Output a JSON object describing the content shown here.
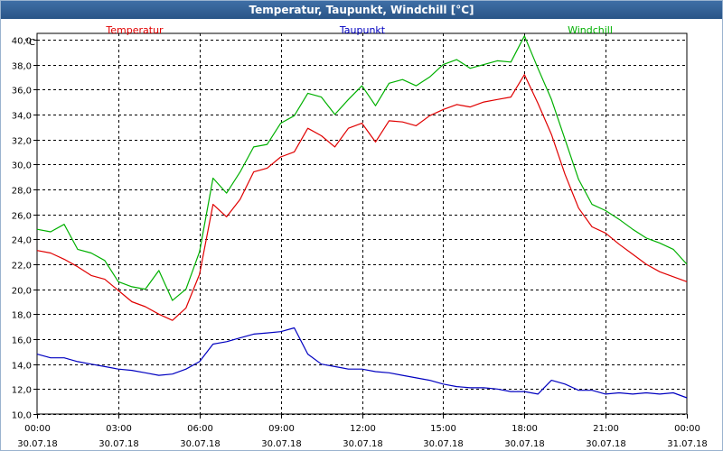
{
  "window": {
    "title": "Temperatur, Taupunkt, Windchill [°C]"
  },
  "chart_data": {
    "type": "line",
    "title": "Temperatur, Taupunkt, Windchill [°C]",
    "ylabel": "°C",
    "xlabel": "",
    "ylim": [
      10.0,
      40.5
    ],
    "xlim": [
      0,
      24
    ],
    "grid": true,
    "legend_placement": "top",
    "yticks": [
      "10,0",
      "12,0",
      "14,0",
      "16,0",
      "18,0",
      "20,0",
      "22,0",
      "24,0",
      "26,0",
      "28,0",
      "30,0",
      "32,0",
      "34,0",
      "36,0",
      "38,0",
      "40,0"
    ],
    "xticks": [
      {
        "time": "00:00",
        "date": "30.07.18"
      },
      {
        "time": "03:00",
        "date": "30.07.18"
      },
      {
        "time": "06:00",
        "date": "30.07.18"
      },
      {
        "time": "09:00",
        "date": "30.07.18"
      },
      {
        "time": "12:00",
        "date": "30.07.18"
      },
      {
        "time": "15:00",
        "date": "30.07.18"
      },
      {
        "time": "18:00",
        "date": "30.07.18"
      },
      {
        "time": "21:00",
        "date": "30.07.18"
      },
      {
        "time": "00:00",
        "date": "31.07.18"
      }
    ],
    "series": [
      {
        "name": "Temperatur",
        "color": "#e00000",
        "x": [
          0,
          0.5,
          1,
          1.5,
          2,
          2.5,
          3,
          3.5,
          4,
          4.5,
          5,
          5.5,
          6,
          6.5,
          7,
          7.5,
          8,
          8.5,
          9,
          9.5,
          10,
          10.5,
          11,
          11.5,
          12,
          12.5,
          13,
          13.5,
          14,
          14.5,
          15,
          15.5,
          16,
          16.5,
          17,
          17.5,
          18,
          18.5,
          19,
          19.5,
          20,
          20.5,
          21,
          21.5,
          22,
          22.5,
          23,
          23.5,
          24
        ],
        "values": [
          23.1,
          22.9,
          22.4,
          21.8,
          21.1,
          20.8,
          19.9,
          19.0,
          18.6,
          18.0,
          17.5,
          18.5,
          21.2,
          26.8,
          25.8,
          27.2,
          29.4,
          29.7,
          30.6,
          31.0,
          32.9,
          32.3,
          31.4,
          32.9,
          33.3,
          31.8,
          33.5,
          33.4,
          33.1,
          33.9,
          34.4,
          34.8,
          34.6,
          35.0,
          35.2,
          35.4,
          37.2,
          34.9,
          32.4,
          29.2,
          26.5,
          25.0,
          24.5,
          23.6,
          22.8,
          22.0,
          21.4,
          21.0,
          20.6
        ]
      },
      {
        "name": "Taupunkt",
        "color": "#0000c0",
        "x": [
          0,
          0.5,
          1,
          1.5,
          2,
          2.5,
          3,
          3.5,
          4,
          4.5,
          5,
          5.5,
          6,
          6.5,
          7,
          7.5,
          8,
          8.5,
          9,
          9.5,
          10,
          10.5,
          11,
          11.5,
          12,
          12.5,
          13,
          13.5,
          14,
          14.5,
          15,
          15.5,
          16,
          16.5,
          17,
          17.5,
          18,
          18.5,
          19,
          19.5,
          20,
          20.5,
          21,
          21.5,
          22,
          22.5,
          23,
          23.5,
          24
        ],
        "values": [
          14.8,
          14.5,
          14.5,
          14.2,
          14.0,
          13.8,
          13.6,
          13.5,
          13.3,
          13.1,
          13.2,
          13.6,
          14.2,
          15.6,
          15.8,
          16.1,
          16.4,
          16.5,
          16.6,
          16.9,
          14.8,
          14.0,
          13.8,
          13.6,
          13.6,
          13.4,
          13.3,
          13.1,
          12.9,
          12.7,
          12.4,
          12.2,
          12.1,
          12.1,
          12.0,
          11.8,
          11.8,
          11.6,
          12.7,
          12.4,
          11.9,
          11.9,
          11.6,
          11.7,
          11.6,
          11.7,
          11.6,
          11.7,
          11.3
        ]
      },
      {
        "name": "Windchill",
        "color": "#00b000",
        "x": [
          0,
          0.5,
          1,
          1.5,
          2,
          2.5,
          3,
          3.5,
          4,
          4.5,
          5,
          5.5,
          6,
          6.5,
          7,
          7.5,
          8,
          8.5,
          9,
          9.5,
          10,
          10.5,
          11,
          11.5,
          12,
          12.5,
          13,
          13.5,
          14,
          14.5,
          15,
          15.5,
          16,
          16.5,
          17,
          17.5,
          18,
          18.5,
          19,
          19.5,
          20,
          20.5,
          21,
          21.5,
          22,
          22.5,
          23,
          23.5,
          24
        ],
        "values": [
          24.8,
          24.6,
          25.2,
          23.2,
          22.9,
          22.3,
          20.6,
          20.2,
          20.0,
          21.5,
          19.1,
          20.0,
          23.0,
          28.9,
          27.7,
          29.4,
          31.4,
          31.6,
          33.3,
          33.9,
          35.7,
          35.4,
          34.0,
          35.2,
          36.3,
          34.7,
          36.5,
          36.8,
          36.3,
          37.0,
          38.0,
          38.4,
          37.7,
          38.0,
          38.3,
          38.2,
          40.3,
          37.7,
          35.2,
          32.0,
          28.8,
          26.8,
          26.3,
          25.6,
          24.8,
          24.1,
          23.7,
          23.2,
          22.0
        ]
      }
    ]
  }
}
